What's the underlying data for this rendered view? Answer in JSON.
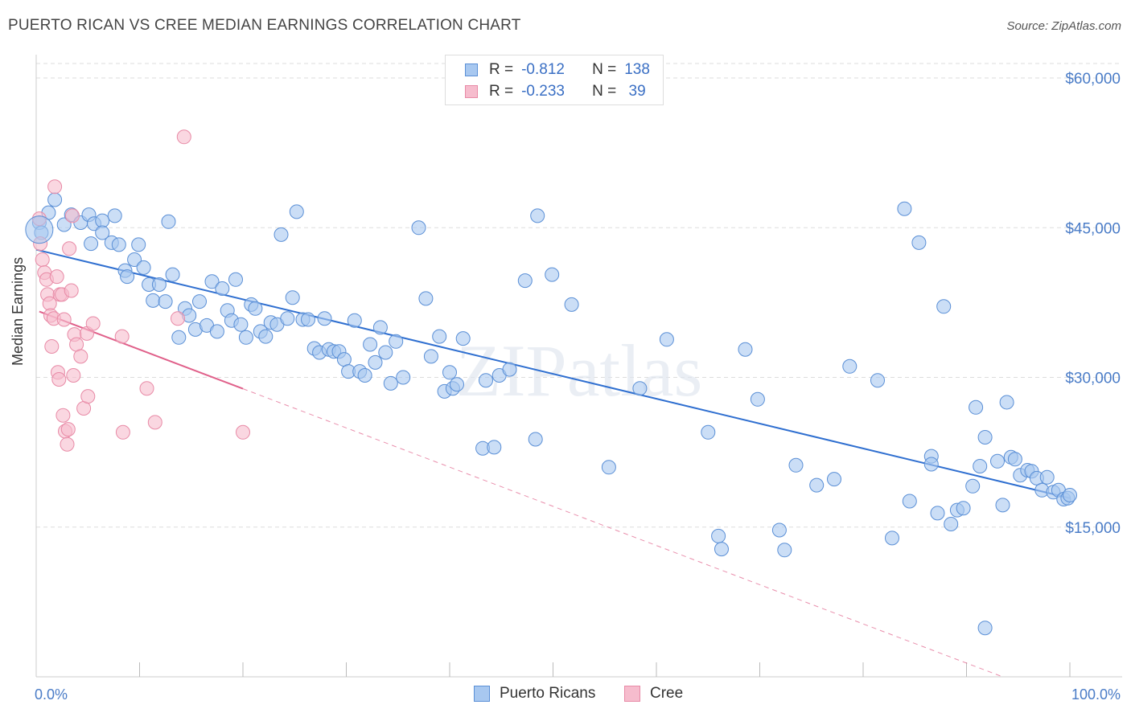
{
  "header": {
    "title": "PUERTO RICAN VS CREE MEDIAN EARNINGS CORRELATION CHART",
    "source": "Source: ZipAtlas.com"
  },
  "legend": {
    "rows": [
      {
        "r_label": "R =",
        "r_value": "-0.812",
        "n_label": "N =",
        "n_value": "138"
      },
      {
        "r_label": "R =",
        "r_value": "-0.233",
        "n_label": "N =",
        "n_value": " 39"
      }
    ]
  },
  "colors": {
    "blue_fill": "#a8c8f0",
    "blue_stroke": "#5a8fd6",
    "blue_line": "#2f6fd0",
    "pink_fill": "#f6bccd",
    "pink_stroke": "#e88aa6",
    "pink_line": "#e0608a",
    "axis_text": "#4a7cc7",
    "grid": "#dddddd"
  },
  "chart_data": {
    "type": "scatter",
    "title": "PUERTO RICAN VS CREE MEDIAN EARNINGS CORRELATION CHART",
    "xlabel": "",
    "ylabel": "Median Earnings",
    "xlim": [
      0,
      100
    ],
    "ylim": [
      0,
      62000
    ],
    "y_ticks": [
      {
        "value": 15000,
        "label": "$15,000"
      },
      {
        "value": 30000,
        "label": "$30,000"
      },
      {
        "value": 45000,
        "label": "$45,000"
      },
      {
        "value": 60000,
        "label": "$60,000"
      }
    ],
    "x_tick_labels": [
      {
        "value": 0,
        "label": "0.0%"
      },
      {
        "value": 100,
        "label": "100.0%"
      }
    ],
    "grid": true,
    "watermark": "ZIPatlas",
    "series": [
      {
        "name": "Puerto Ricans",
        "trend": {
          "x0": 0,
          "y0": 42800,
          "x1": 100,
          "y1": 17900,
          "solid_until": 100
        },
        "points": [
          [
            0.3,
            45500
          ],
          [
            0.5,
            44500
          ],
          [
            1.2,
            46500
          ],
          [
            1.8,
            47800
          ],
          [
            2.7,
            45300
          ],
          [
            3.4,
            46300
          ],
          [
            4.3,
            45500
          ],
          [
            5.1,
            46300
          ],
          [
            5.6,
            45400
          ],
          [
            5.3,
            43400
          ],
          [
            6.4,
            45700
          ],
          [
            6.4,
            44500
          ],
          [
            7.3,
            43500
          ],
          [
            7.6,
            46200
          ],
          [
            8.0,
            43300
          ],
          [
            8.6,
            40700
          ],
          [
            8.8,
            40100
          ],
          [
            9.5,
            41800
          ],
          [
            9.9,
            43300
          ],
          [
            10.4,
            41000
          ],
          [
            10.9,
            39300
          ],
          [
            11.3,
            37700
          ],
          [
            11.9,
            39300
          ],
          [
            12.5,
            37600
          ],
          [
            12.8,
            45600
          ],
          [
            13.2,
            40300
          ],
          [
            13.8,
            34000
          ],
          [
            14.4,
            36900
          ],
          [
            14.8,
            36200
          ],
          [
            15.4,
            34800
          ],
          [
            15.8,
            37600
          ],
          [
            16.5,
            35200
          ],
          [
            17.0,
            39600
          ],
          [
            17.5,
            34600
          ],
          [
            18.0,
            38900
          ],
          [
            18.5,
            36700
          ],
          [
            18.9,
            35700
          ],
          [
            19.3,
            39800
          ],
          [
            19.8,
            35300
          ],
          [
            20.3,
            34000
          ],
          [
            20.8,
            37300
          ],
          [
            21.2,
            36900
          ],
          [
            21.7,
            34600
          ],
          [
            22.2,
            34100
          ],
          [
            22.7,
            35500
          ],
          [
            23.3,
            35300
          ],
          [
            23.7,
            44300
          ],
          [
            24.3,
            35900
          ],
          [
            24.8,
            38000
          ],
          [
            25.2,
            46600
          ],
          [
            25.8,
            35800
          ],
          [
            26.3,
            35800
          ],
          [
            26.9,
            32900
          ],
          [
            27.4,
            32500
          ],
          [
            27.9,
            35900
          ],
          [
            28.3,
            32800
          ],
          [
            28.8,
            32600
          ],
          [
            29.3,
            32600
          ],
          [
            29.8,
            31800
          ],
          [
            30.2,
            30600
          ],
          [
            30.8,
            35700
          ],
          [
            31.3,
            30600
          ],
          [
            31.8,
            30200
          ],
          [
            32.3,
            33300
          ],
          [
            32.8,
            31500
          ],
          [
            33.3,
            35000
          ],
          [
            33.8,
            32500
          ],
          [
            34.3,
            29400
          ],
          [
            34.8,
            33600
          ],
          [
            35.5,
            30000
          ],
          [
            37.0,
            45000
          ],
          [
            37.7,
            37900
          ],
          [
            38.2,
            32100
          ],
          [
            39.0,
            34100
          ],
          [
            39.5,
            28600
          ],
          [
            40.0,
            30500
          ],
          [
            40.3,
            28900
          ],
          [
            40.7,
            29300
          ],
          [
            41.3,
            33900
          ],
          [
            43.2,
            22900
          ],
          [
            43.5,
            29700
          ],
          [
            44.3,
            23000
          ],
          [
            44.8,
            30200
          ],
          [
            45.8,
            30800
          ],
          [
            47.3,
            39700
          ],
          [
            48.3,
            23800
          ],
          [
            48.5,
            46200
          ],
          [
            49.9,
            40300
          ],
          [
            51.8,
            37300
          ],
          [
            55.4,
            21000
          ],
          [
            58.4,
            28900
          ],
          [
            61.0,
            33800
          ],
          [
            65.0,
            24500
          ],
          [
            66.0,
            14100
          ],
          [
            66.3,
            12800
          ],
          [
            68.6,
            32800
          ],
          [
            69.8,
            27800
          ],
          [
            71.9,
            14700
          ],
          [
            72.4,
            12700
          ],
          [
            73.5,
            21200
          ],
          [
            75.5,
            19200
          ],
          [
            77.2,
            19800
          ],
          [
            78.7,
            31100
          ],
          [
            81.4,
            29700
          ],
          [
            82.8,
            13900
          ],
          [
            84.5,
            17600
          ],
          [
            85.4,
            43500
          ],
          [
            84.0,
            46900
          ],
          [
            86.6,
            22100
          ],
          [
            86.6,
            21300
          ],
          [
            87.2,
            16400
          ],
          [
            87.8,
            37100
          ],
          [
            88.5,
            15300
          ],
          [
            89.1,
            16700
          ],
          [
            89.7,
            16900
          ],
          [
            90.6,
            19100
          ],
          [
            90.9,
            27000
          ],
          [
            91.3,
            21100
          ],
          [
            91.8,
            24000
          ],
          [
            93.0,
            21600
          ],
          [
            93.5,
            17200
          ],
          [
            93.9,
            27500
          ],
          [
            94.3,
            22000
          ],
          [
            94.7,
            21800
          ],
          [
            95.2,
            20200
          ],
          [
            95.9,
            20700
          ],
          [
            96.3,
            20600
          ],
          [
            96.8,
            19900
          ],
          [
            97.3,
            18700
          ],
          [
            97.8,
            20000
          ],
          [
            98.4,
            18500
          ],
          [
            98.9,
            18700
          ],
          [
            99.4,
            17800
          ],
          [
            99.8,
            17900
          ],
          [
            100.0,
            18200
          ],
          [
            91.8,
            4900
          ]
        ]
      },
      {
        "name": "Cree",
        "trend": {
          "x0": 0.3,
          "y0": 36600,
          "x1": 93.5,
          "y1": 0,
          "solid_until": 20.0
        },
        "points": [
          [
            0.3,
            45900
          ],
          [
            0.4,
            43400
          ],
          [
            0.6,
            41800
          ],
          [
            0.8,
            40500
          ],
          [
            1.0,
            39800
          ],
          [
            1.1,
            38300
          ],
          [
            1.3,
            37400
          ],
          [
            1.4,
            36200
          ],
          [
            1.5,
            33100
          ],
          [
            1.7,
            35900
          ],
          [
            1.8,
            49100
          ],
          [
            2.0,
            40100
          ],
          [
            2.1,
            30500
          ],
          [
            2.2,
            29800
          ],
          [
            2.3,
            38300
          ],
          [
            2.5,
            38300
          ],
          [
            2.6,
            26200
          ],
          [
            2.7,
            35800
          ],
          [
            2.8,
            24600
          ],
          [
            3.0,
            23300
          ],
          [
            3.1,
            24800
          ],
          [
            3.2,
            42900
          ],
          [
            3.4,
            38700
          ],
          [
            3.5,
            46200
          ],
          [
            3.6,
            30200
          ],
          [
            3.7,
            34300
          ],
          [
            3.9,
            33300
          ],
          [
            4.3,
            32100
          ],
          [
            4.6,
            26900
          ],
          [
            4.9,
            34400
          ],
          [
            5.0,
            28100
          ],
          [
            5.5,
            35400
          ],
          [
            8.3,
            34100
          ],
          [
            8.4,
            24500
          ],
          [
            10.7,
            28900
          ],
          [
            11.5,
            25500
          ],
          [
            13.7,
            35900
          ],
          [
            14.3,
            54100
          ],
          [
            20.0,
            24500
          ]
        ]
      }
    ]
  }
}
